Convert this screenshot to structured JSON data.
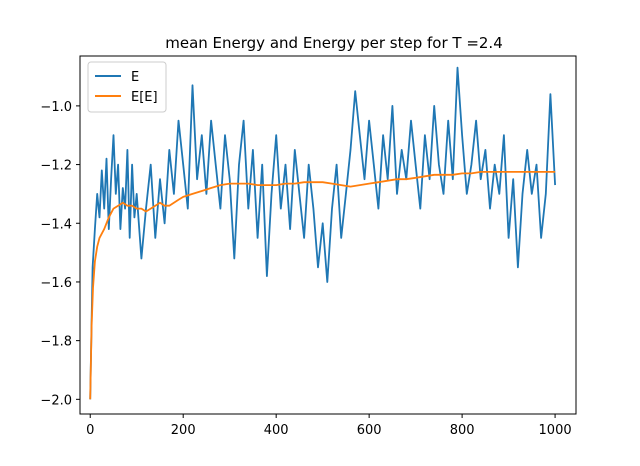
{
  "chart_data": {
    "type": "line",
    "title": "mean Energy and Energy per step for T =2.4",
    "xlabel": "",
    "ylabel": "",
    "xlim": [
      -22,
      1045
    ],
    "ylim": [
      -2.05,
      -0.83
    ],
    "x_ticks": [
      0,
      200,
      400,
      600,
      800,
      1000
    ],
    "x_tick_labels": [
      "0",
      "200",
      "400",
      "600",
      "800",
      "1000"
    ],
    "y_ticks": [
      -2.0,
      -1.8,
      -1.6,
      -1.4,
      -1.2,
      -1.0
    ],
    "y_tick_labels": [
      "−2.0",
      "−1.8",
      "−1.6",
      "−1.4",
      "−1.2",
      "−1.0"
    ],
    "grid": false,
    "legend_position": "upper-left",
    "series": [
      {
        "name": "E",
        "color": "#1f77b4",
        "x": [
          0,
          5,
          10,
          15,
          20,
          25,
          30,
          35,
          40,
          45,
          50,
          55,
          60,
          65,
          70,
          75,
          80,
          85,
          90,
          95,
          100,
          110,
          120,
          130,
          140,
          150,
          160,
          170,
          180,
          190,
          200,
          210,
          220,
          230,
          240,
          250,
          260,
          270,
          280,
          290,
          300,
          310,
          320,
          330,
          340,
          350,
          360,
          370,
          380,
          390,
          400,
          410,
          420,
          430,
          440,
          450,
          460,
          470,
          480,
          490,
          500,
          510,
          520,
          530,
          540,
          550,
          560,
          570,
          580,
          590,
          600,
          610,
          620,
          630,
          640,
          650,
          660,
          670,
          680,
          690,
          700,
          710,
          720,
          730,
          740,
          750,
          760,
          770,
          780,
          790,
          800,
          810,
          820,
          830,
          840,
          850,
          860,
          870,
          880,
          890,
          900,
          910,
          920,
          930,
          940,
          950,
          960,
          970,
          980,
          990,
          1000
        ],
        "values": [
          -2.0,
          -1.55,
          -1.42,
          -1.3,
          -1.38,
          -1.22,
          -1.35,
          -1.18,
          -1.42,
          -1.25,
          -1.1,
          -1.3,
          -1.2,
          -1.42,
          -1.28,
          -1.35,
          -1.15,
          -1.45,
          -1.2,
          -1.38,
          -1.3,
          -1.52,
          -1.35,
          -1.2,
          -1.45,
          -1.25,
          -1.4,
          -1.15,
          -1.3,
          -1.05,
          -1.2,
          -1.35,
          -0.93,
          -1.25,
          -1.1,
          -1.3,
          -1.05,
          -1.2,
          -1.35,
          -1.1,
          -1.25,
          -1.52,
          -1.2,
          -1.05,
          -1.35,
          -1.15,
          -1.45,
          -1.2,
          -1.58,
          -1.3,
          -1.1,
          -1.35,
          -1.2,
          -1.42,
          -1.15,
          -1.3,
          -1.45,
          -1.2,
          -1.35,
          -1.55,
          -1.4,
          -1.6,
          -1.35,
          -1.2,
          -1.45,
          -1.3,
          -1.15,
          -0.95,
          -1.1,
          -1.25,
          -1.05,
          -1.2,
          -1.35,
          -1.1,
          -1.25,
          -1.0,
          -1.3,
          -1.15,
          -1.25,
          -1.05,
          -1.2,
          -1.35,
          -1.1,
          -1.25,
          -1.0,
          -1.2,
          -1.3,
          -1.05,
          -1.25,
          -0.87,
          -1.1,
          -1.3,
          -1.2,
          -1.05,
          -1.25,
          -1.15,
          -1.35,
          -1.2,
          -1.3,
          -1.1,
          -1.45,
          -1.25,
          -1.55,
          -1.3,
          -1.15,
          -1.3,
          -1.2,
          -1.45,
          -1.3,
          -0.96,
          -1.27
        ]
      },
      {
        "name": "E[E]",
        "color": "#ff7f0e",
        "x": [
          0,
          3,
          6,
          10,
          15,
          20,
          30,
          40,
          50,
          60,
          70,
          80,
          90,
          100,
          110,
          120,
          130,
          140,
          150,
          160,
          170,
          180,
          190,
          200,
          220,
          240,
          260,
          280,
          300,
          320,
          340,
          360,
          380,
          400,
          420,
          440,
          460,
          480,
          500,
          520,
          540,
          560,
          580,
          600,
          620,
          640,
          660,
          680,
          700,
          720,
          740,
          760,
          780,
          800,
          820,
          840,
          860,
          880,
          900,
          920,
          940,
          960,
          980,
          1000
        ],
        "values": [
          -2.0,
          -1.75,
          -1.62,
          -1.53,
          -1.48,
          -1.45,
          -1.42,
          -1.38,
          -1.35,
          -1.34,
          -1.33,
          -1.34,
          -1.34,
          -1.35,
          -1.35,
          -1.36,
          -1.35,
          -1.34,
          -1.33,
          -1.34,
          -1.34,
          -1.33,
          -1.32,
          -1.31,
          -1.3,
          -1.29,
          -1.28,
          -1.27,
          -1.265,
          -1.265,
          -1.265,
          -1.27,
          -1.27,
          -1.27,
          -1.265,
          -1.265,
          -1.26,
          -1.26,
          -1.26,
          -1.265,
          -1.27,
          -1.275,
          -1.27,
          -1.265,
          -1.26,
          -1.255,
          -1.25,
          -1.25,
          -1.245,
          -1.24,
          -1.235,
          -1.235,
          -1.235,
          -1.23,
          -1.23,
          -1.225,
          -1.225,
          -1.225,
          -1.225,
          -1.225,
          -1.225,
          -1.225,
          -1.225,
          -1.225
        ]
      }
    ]
  }
}
